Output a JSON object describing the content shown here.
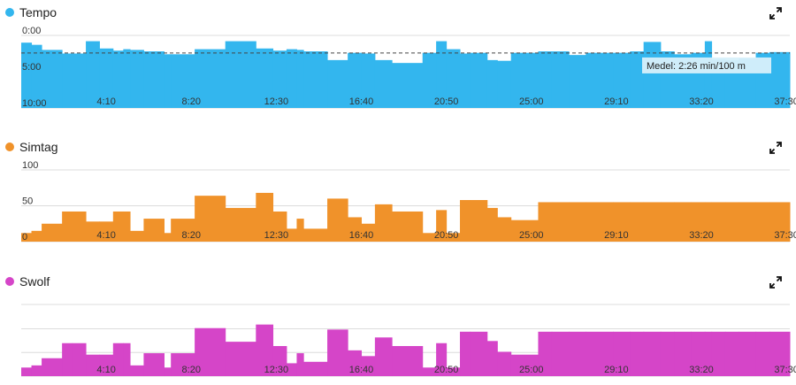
{
  "charts": [
    {
      "key": "tempo",
      "legend": "Tempo",
      "color": "#33b6ee",
      "icon": "expand-icon"
    },
    {
      "key": "simtag",
      "legend": "Simtag",
      "color": "#f0922a",
      "icon": "expand-icon"
    },
    {
      "key": "swolf",
      "legend": "Swolf",
      "color": "#d545c8",
      "icon": "expand-icon"
    }
  ],
  "chart_data": [
    {
      "type": "area",
      "title": "Tempo",
      "x_ticks": [
        "4:10",
        "8:20",
        "12:30",
        "16:40",
        "20:50",
        "25:00",
        "29:10",
        "33:20",
        "37:30"
      ],
      "x_tick_values": [
        250,
        500,
        750,
        1000,
        1250,
        1500,
        1750,
        2000,
        2250
      ],
      "y_ticks": [
        "0:00",
        "5:00",
        "10:00"
      ],
      "y_tick_values": [
        0,
        5,
        10
      ],
      "ylim": [
        0,
        10
      ],
      "y_inverted": true,
      "average_label": "Medel: 2:26 min/100 m",
      "average_value": 2.43,
      "series": [
        {
          "x": [
            0,
            30,
            60,
            120,
            150,
            190,
            230,
            270,
            300,
            320,
            360,
            420,
            440,
            510,
            600,
            690,
            740,
            780,
            810,
            830,
            900,
            960,
            1000,
            1040,
            1090,
            1180,
            1220,
            1250,
            1290,
            1320,
            1370,
            1400,
            1440,
            1520,
            1560,
            1610,
            1660,
            1740,
            1790,
            1830,
            1880,
            1920,
            1970,
            2010,
            2030,
            2070,
            2110,
            2160,
            2200
          ],
          "values": [
            1.0,
            1.3,
            2.0,
            2.5,
            2.5,
            0.8,
            1.8,
            2.1,
            1.9,
            2.0,
            2.2,
            2.6,
            2.6,
            1.9,
            0.8,
            1.8,
            2.1,
            1.9,
            2.0,
            2.2,
            3.4,
            2.4,
            2.5,
            3.4,
            3.8,
            2.4,
            0.8,
            1.9,
            2.5,
            2.4,
            3.4,
            3.5,
            2.4,
            2.2,
            2.2,
            2.7,
            2.4,
            2.4,
            2.2,
            0.9,
            2.2,
            2.6,
            2.4,
            0.8,
            3.3,
            3.4,
            3.2,
            2.4,
            2.3
          ]
        }
      ]
    },
    {
      "type": "bar",
      "title": "Simtag",
      "x_ticks": [
        "4:10",
        "8:20",
        "12:30",
        "16:40",
        "20:50",
        "25:00",
        "29:10",
        "33:20",
        "37:30"
      ],
      "x_tick_values": [
        250,
        500,
        750,
        1000,
        1250,
        1500,
        1750,
        2000,
        2250
      ],
      "y_ticks": [
        "0",
        "50",
        "100"
      ],
      "y_tick_values": [
        0,
        50,
        100
      ],
      "ylim": [
        0,
        100
      ],
      "series": [
        {
          "x": [
            0,
            30,
            60,
            120,
            150,
            190,
            230,
            270,
            300,
            320,
            360,
            420,
            440,
            510,
            600,
            690,
            740,
            780,
            810,
            830,
            900,
            960,
            1000,
            1040,
            1090,
            1180,
            1220,
            1250,
            1290,
            1320,
            1370,
            1400,
            1440,
            1520,
            1560,
            1610,
            1660,
            1740,
            1790,
            1830,
            1880,
            1920,
            1970,
            2010,
            2030,
            2070,
            2110,
            2160,
            2200
          ],
          "values": [
            12,
            15,
            25,
            42,
            42,
            28,
            28,
            42,
            42,
            15,
            32,
            12,
            32,
            64,
            47,
            68,
            42,
            18,
            32,
            18,
            60,
            34,
            25,
            52,
            42,
            12,
            44,
            12,
            58,
            58,
            47,
            34,
            30,
            55,
            55,
            55,
            55,
            55,
            55,
            55,
            55,
            55,
            55,
            55,
            55,
            55,
            55,
            55,
            55
          ]
        }
      ]
    },
    {
      "type": "bar",
      "title": "Swolf",
      "x_ticks": [
        "4:10",
        "8:20",
        "12:30",
        "16:40",
        "20:50",
        "25:00",
        "29:10",
        "33:20",
        "37:30"
      ],
      "x_tick_values": [
        250,
        500,
        750,
        1000,
        1250,
        1500,
        1750,
        2000,
        2250
      ],
      "ylim": [
        0,
        100
      ],
      "series": [
        {
          "x": [
            0,
            30,
            60,
            120,
            150,
            190,
            230,
            270,
            300,
            320,
            360,
            420,
            440,
            510,
            600,
            690,
            740,
            780,
            810,
            830,
            900,
            960,
            1000,
            1040,
            1090,
            1180,
            1220,
            1250,
            1290,
            1320,
            1370,
            1400,
            1440,
            1520,
            1560,
            1610,
            1660,
            1740,
            1790,
            1830,
            1880,
            1920,
            1970,
            2010,
            2030,
            2070,
            2110,
            2160,
            2200
          ],
          "values": [
            12,
            15,
            25,
            46,
            46,
            30,
            30,
            46,
            46,
            15,
            32,
            12,
            32,
            67,
            48,
            72,
            42,
            18,
            32,
            20,
            65,
            36,
            28,
            54,
            42,
            12,
            46,
            12,
            62,
            62,
            49,
            34,
            30,
            62,
            62,
            62,
            62,
            62,
            62,
            62,
            62,
            62,
            62,
            62,
            62,
            62,
            62,
            62,
            62
          ]
        }
      ]
    }
  ]
}
